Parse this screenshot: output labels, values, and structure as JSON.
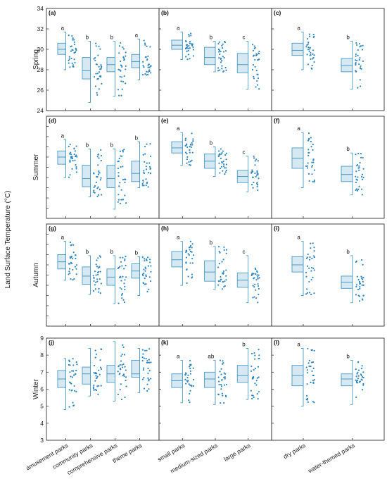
{
  "figure": {
    "ylabel": "Land Surface Temperature (°C)",
    "seasons": [
      "Spring",
      "Summer",
      "Autumn",
      "Winter"
    ],
    "groups": [
      {
        "categories": [
          "amusement parks",
          "community parks",
          "comprehensive parks",
          "theme parks"
        ]
      },
      {
        "categories": [
          "small parks",
          "medium-sized parks",
          "large parks"
        ]
      },
      {
        "categories": [
          "dry parks",
          "water-themed parks"
        ]
      }
    ],
    "colors": {
      "box_fill": "#d6e9f3",
      "box_edge": "#4a9ac4",
      "points": "#2f86be",
      "frame": "#333333"
    }
  },
  "chart_data": [
    {
      "panel": "(a)",
      "season": "Spring",
      "type": "box",
      "ylim": [
        24,
        34
      ],
      "yticks": [
        24,
        26,
        28,
        30,
        32,
        34
      ],
      "categories": [
        "amusement parks",
        "community parks",
        "comprehensive parks",
        "theme parks"
      ],
      "boxes": [
        {
          "min": 28,
          "q1": 29.5,
          "median": 30.0,
          "q3": 30.6,
          "max": 31.7,
          "letter": "a"
        },
        {
          "min": 24.8,
          "q1": 27.1,
          "median": 27.9,
          "q3": 29.2,
          "max": 30.8,
          "letter": "b"
        },
        {
          "min": 25.4,
          "q1": 27.8,
          "median": 28.5,
          "q3": 29.2,
          "max": 30.8,
          "letter": "b"
        },
        {
          "min": 27.0,
          "q1": 28.2,
          "median": 28.8,
          "q3": 29.5,
          "max": 31.0,
          "letter": "a"
        }
      ]
    },
    {
      "panel": "(b)",
      "season": "Spring",
      "type": "box",
      "ylim": [
        24,
        34
      ],
      "categories": [
        "small parks",
        "medium-sized parks",
        "large parks"
      ],
      "boxes": [
        {
          "min": 29.0,
          "q1": 30.0,
          "median": 30.4,
          "q3": 30.9,
          "max": 31.7,
          "letter": "a"
        },
        {
          "min": 27.8,
          "q1": 28.5,
          "median": 29.2,
          "q3": 30.2,
          "max": 30.8,
          "letter": "b"
        },
        {
          "min": 26.1,
          "q1": 27.7,
          "median": 28.5,
          "q3": 29.6,
          "max": 30.8,
          "letter": "c"
        }
      ]
    },
    {
      "panel": "(c)",
      "season": "Spring",
      "type": "box",
      "ylim": [
        24,
        34
      ],
      "categories": [
        "dry parks",
        "water-themed parks"
      ],
      "boxes": [
        {
          "min": 28.0,
          "q1": 29.4,
          "median": 29.9,
          "q3": 30.6,
          "max": 31.7,
          "letter": "a"
        },
        {
          "min": 26.1,
          "q1": 27.8,
          "median": 28.4,
          "q3": 29.1,
          "max": 30.8,
          "letter": "b"
        }
      ]
    },
    {
      "panel": "(d)",
      "season": "Summer",
      "type": "box",
      "ylim": [
        24,
        34
      ],
      "categories": [
        "amusement parks",
        "community parks",
        "comprehensive parks",
        "theme parks"
      ],
      "boxes": [
        {
          "min": 28.0,
          "q1": 29.3,
          "median": 30.0,
          "q3": 30.6,
          "max": 31.7,
          "letter": "a"
        },
        {
          "min": 26.1,
          "q1": 27.1,
          "median": 27.9,
          "q3": 29.2,
          "max": 30.8,
          "letter": "b"
        },
        {
          "min": 24.9,
          "q1": 27.0,
          "median": 27.9,
          "q3": 29.2,
          "max": 30.8,
          "letter": "b"
        },
        {
          "min": 27.0,
          "q1": 27.6,
          "median": 28.4,
          "q3": 29.6,
          "max": 31.5,
          "letter": "b"
        }
      ]
    },
    {
      "panel": "(e)",
      "season": "Summer",
      "type": "box",
      "ylim": [
        24,
        34
      ],
      "categories": [
        "small parks",
        "medium-sized parks",
        "large parks"
      ],
      "boxes": [
        {
          "min": 29.2,
          "q1": 30.4,
          "median": 30.9,
          "q3": 31.5,
          "max": 32.4,
          "letter": "a"
        },
        {
          "min": 28.1,
          "q1": 28.9,
          "median": 29.6,
          "q3": 30.3,
          "max": 31.0,
          "letter": "b"
        },
        {
          "min": 26.6,
          "q1": 27.5,
          "median": 28.1,
          "q3": 28.7,
          "max": 30.1,
          "letter": "c"
        }
      ]
    },
    {
      "panel": "(f)",
      "season": "Summer",
      "type": "box",
      "ylim": [
        24,
        34
      ],
      "categories": [
        "dry parks",
        "water-themed parks"
      ],
      "boxes": [
        {
          "min": 27.0,
          "q1": 28.9,
          "median": 29.9,
          "q3": 30.9,
          "max": 32.4,
          "letter": "a"
        },
        {
          "min": 26.3,
          "q1": 27.6,
          "median": 28.3,
          "q3": 29.1,
          "max": 30.4,
          "letter": "b"
        }
      ]
    },
    {
      "panel": "(g)",
      "season": "Autumn",
      "type": "box",
      "ylim": [
        24,
        34
      ],
      "categories": [
        "amusement parks",
        "community parks",
        "comprehensive parks",
        "theme parks"
      ],
      "boxes": [
        {
          "min": 28.5,
          "q1": 29.6,
          "median": 30.3,
          "q3": 31.0,
          "max": 32.3,
          "letter": "a"
        },
        {
          "min": 27.1,
          "q1": 28.1,
          "median": 28.9,
          "q3": 29.8,
          "max": 30.9,
          "letter": "b"
        },
        {
          "min": 26.2,
          "q1": 28.0,
          "median": 28.8,
          "q3": 29.6,
          "max": 30.9,
          "letter": "b"
        },
        {
          "min": 27.0,
          "q1": 28.7,
          "median": 29.4,
          "q3": 30.1,
          "max": 30.8,
          "letter": "b"
        }
      ]
    },
    {
      "panel": "(h)",
      "season": "Autumn",
      "type": "box",
      "ylim": [
        24,
        34
      ],
      "categories": [
        "small parks",
        "medium-sized parks",
        "large parks"
      ],
      "boxes": [
        {
          "min": 28.0,
          "q1": 29.8,
          "median": 30.5,
          "q3": 31.3,
          "max": 32.3,
          "letter": "a"
        },
        {
          "min": 27.6,
          "q1": 28.4,
          "median": 29.3,
          "q3": 30.4,
          "max": 31.8,
          "letter": "b"
        },
        {
          "min": 26.3,
          "q1": 27.8,
          "median": 28.5,
          "q3": 29.2,
          "max": 30.9,
          "letter": "c"
        }
      ]
    },
    {
      "panel": "(i)",
      "season": "Autumn",
      "type": "box",
      "ylim": [
        24,
        34
      ],
      "categories": [
        "dry parks",
        "water-themed parks"
      ],
      "boxes": [
        {
          "min": 27.0,
          "q1": 29.3,
          "median": 30.0,
          "q3": 30.8,
          "max": 32.3,
          "letter": "a"
        },
        {
          "min": 26.3,
          "q1": 27.7,
          "median": 28.3,
          "q3": 28.9,
          "max": 30.9,
          "letter": "b"
        }
      ]
    },
    {
      "panel": "(j)",
      "season": "Winter",
      "type": "box",
      "ylim": [
        3,
        9
      ],
      "yticks": [
        3,
        4,
        5,
        6,
        7,
        8,
        9
      ],
      "categories": [
        "amusement parks",
        "community parks",
        "comprehensive parks",
        "theme parks"
      ],
      "boxes": [
        {
          "min": 4.8,
          "q1": 6.1,
          "median": 6.6,
          "q3": 7.1,
          "max": 7.8,
          "letter": ""
        },
        {
          "min": 5.6,
          "q1": 6.3,
          "median": 6.9,
          "q3": 7.3,
          "max": 8.4,
          "letter": ""
        },
        {
          "min": 5.3,
          "q1": 6.4,
          "median": 6.9,
          "q3": 7.4,
          "max": 8.8,
          "letter": ""
        },
        {
          "min": 5.8,
          "q1": 6.7,
          "median": 6.9,
          "q3": 7.7,
          "max": 8.4,
          "letter": ""
        }
      ]
    },
    {
      "panel": "(k)",
      "season": "Winter",
      "type": "box",
      "ylim": [
        3,
        9
      ],
      "categories": [
        "small parks",
        "medium-sized parks",
        "large parks"
      ],
      "boxes": [
        {
          "min": 5.2,
          "q1": 6.1,
          "median": 6.5,
          "q3": 6.9,
          "max": 7.7,
          "letter": "a"
        },
        {
          "min": 5.1,
          "q1": 6.1,
          "median": 6.6,
          "q3": 7.0,
          "max": 7.7,
          "letter": "ab"
        },
        {
          "min": 5.4,
          "q1": 6.4,
          "median": 6.8,
          "q3": 7.4,
          "max": 8.4,
          "letter": "b"
        }
      ]
    },
    {
      "panel": "(l)",
      "season": "Winter",
      "type": "box",
      "ylim": [
        3,
        9
      ],
      "categories": [
        "dry parks",
        "water-themed parks"
      ],
      "boxes": [
        {
          "min": 5.0,
          "q1": 6.2,
          "median": 6.8,
          "q3": 7.4,
          "max": 8.4,
          "letter": "a"
        },
        {
          "min": 5.1,
          "q1": 6.2,
          "median": 6.6,
          "q3": 6.9,
          "max": 7.7,
          "letter": "b"
        }
      ]
    }
  ]
}
